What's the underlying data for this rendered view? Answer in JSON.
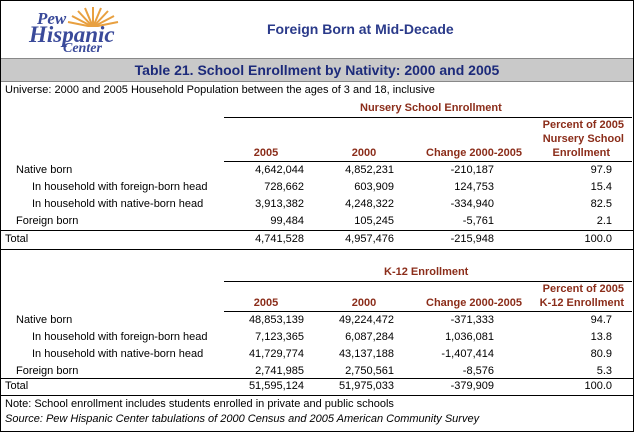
{
  "header": {
    "logo": {
      "line1": "Pew",
      "line2": "Hispanic",
      "line3": "Center"
    },
    "title": "Foreign Born at Mid-Decade"
  },
  "table_title": "Table 21. School Enrollment by Nativity:  2000 and 2005",
  "universe": "Universe: 2000 and 2005 Household Population between the ages of 3 and 18, inclusive",
  "sections": [
    {
      "heading": "Nursery School Enrollment",
      "columns": [
        "2005",
        "2000",
        "Change 2000-2005",
        "Percent of 2005",
        "Nursery School",
        "Enrollment"
      ],
      "rows": [
        {
          "label": "Native born",
          "v2005": "4,642,044",
          "v2000": "4,852,231",
          "change": "-210,187",
          "pct": "97.9"
        },
        {
          "label": "In household with foreign-born head",
          "v2005": "728,662",
          "v2000": "603,909",
          "change": "124,753",
          "pct": "15.4"
        },
        {
          "label": "In household with native-born head",
          "v2005": "3,913,382",
          "v2000": "4,248,322",
          "change": "-334,940",
          "pct": "82.5"
        },
        {
          "label": "Foreign born",
          "v2005": "99,484",
          "v2000": "105,245",
          "change": "-5,761",
          "pct": "2.1"
        },
        {
          "label": "Total",
          "v2005": "4,741,528",
          "v2000": "4,957,476",
          "change": "-215,948",
          "pct": "100.0"
        }
      ]
    },
    {
      "heading": "K-12 Enrollment",
      "columns": [
        "2005",
        "2000",
        "Change 2000-2005",
        "Percent of 2005",
        "K-12 Enrollment"
      ],
      "rows": [
        {
          "label": "Native born",
          "v2005": "48,853,139",
          "v2000": "49,224,472",
          "change": "-371,333",
          "pct": "94.7"
        },
        {
          "label": "In household with foreign-born head",
          "v2005": "7,123,365",
          "v2000": "6,087,284",
          "change": "1,036,081",
          "pct": "13.8"
        },
        {
          "label": "In household with native-born head",
          "v2005": "41,729,774",
          "v2000": "43,137,188",
          "change": "-1,407,414",
          "pct": "80.9"
        },
        {
          "label": "Foreign born",
          "v2005": "2,741,985",
          "v2000": "2,750,561",
          "change": "-8,576",
          "pct": "5.3"
        },
        {
          "label": "Total",
          "v2005": "51,595,124",
          "v2000": "51,975,033",
          "change": "-379,909",
          "pct": "100.0"
        }
      ]
    }
  ],
  "note": "Note: School enrollment includes students enrolled in private and public schools",
  "source": "Source: Pew Hispanic Center tabulations of 2000 Census and 2005 American Community Survey",
  "colors": {
    "brand": "#3a4a9a",
    "title": "#2a3a8a",
    "band": "#c9c9c9",
    "column_header": "#8b2d1a",
    "sun": "#e8a040"
  }
}
